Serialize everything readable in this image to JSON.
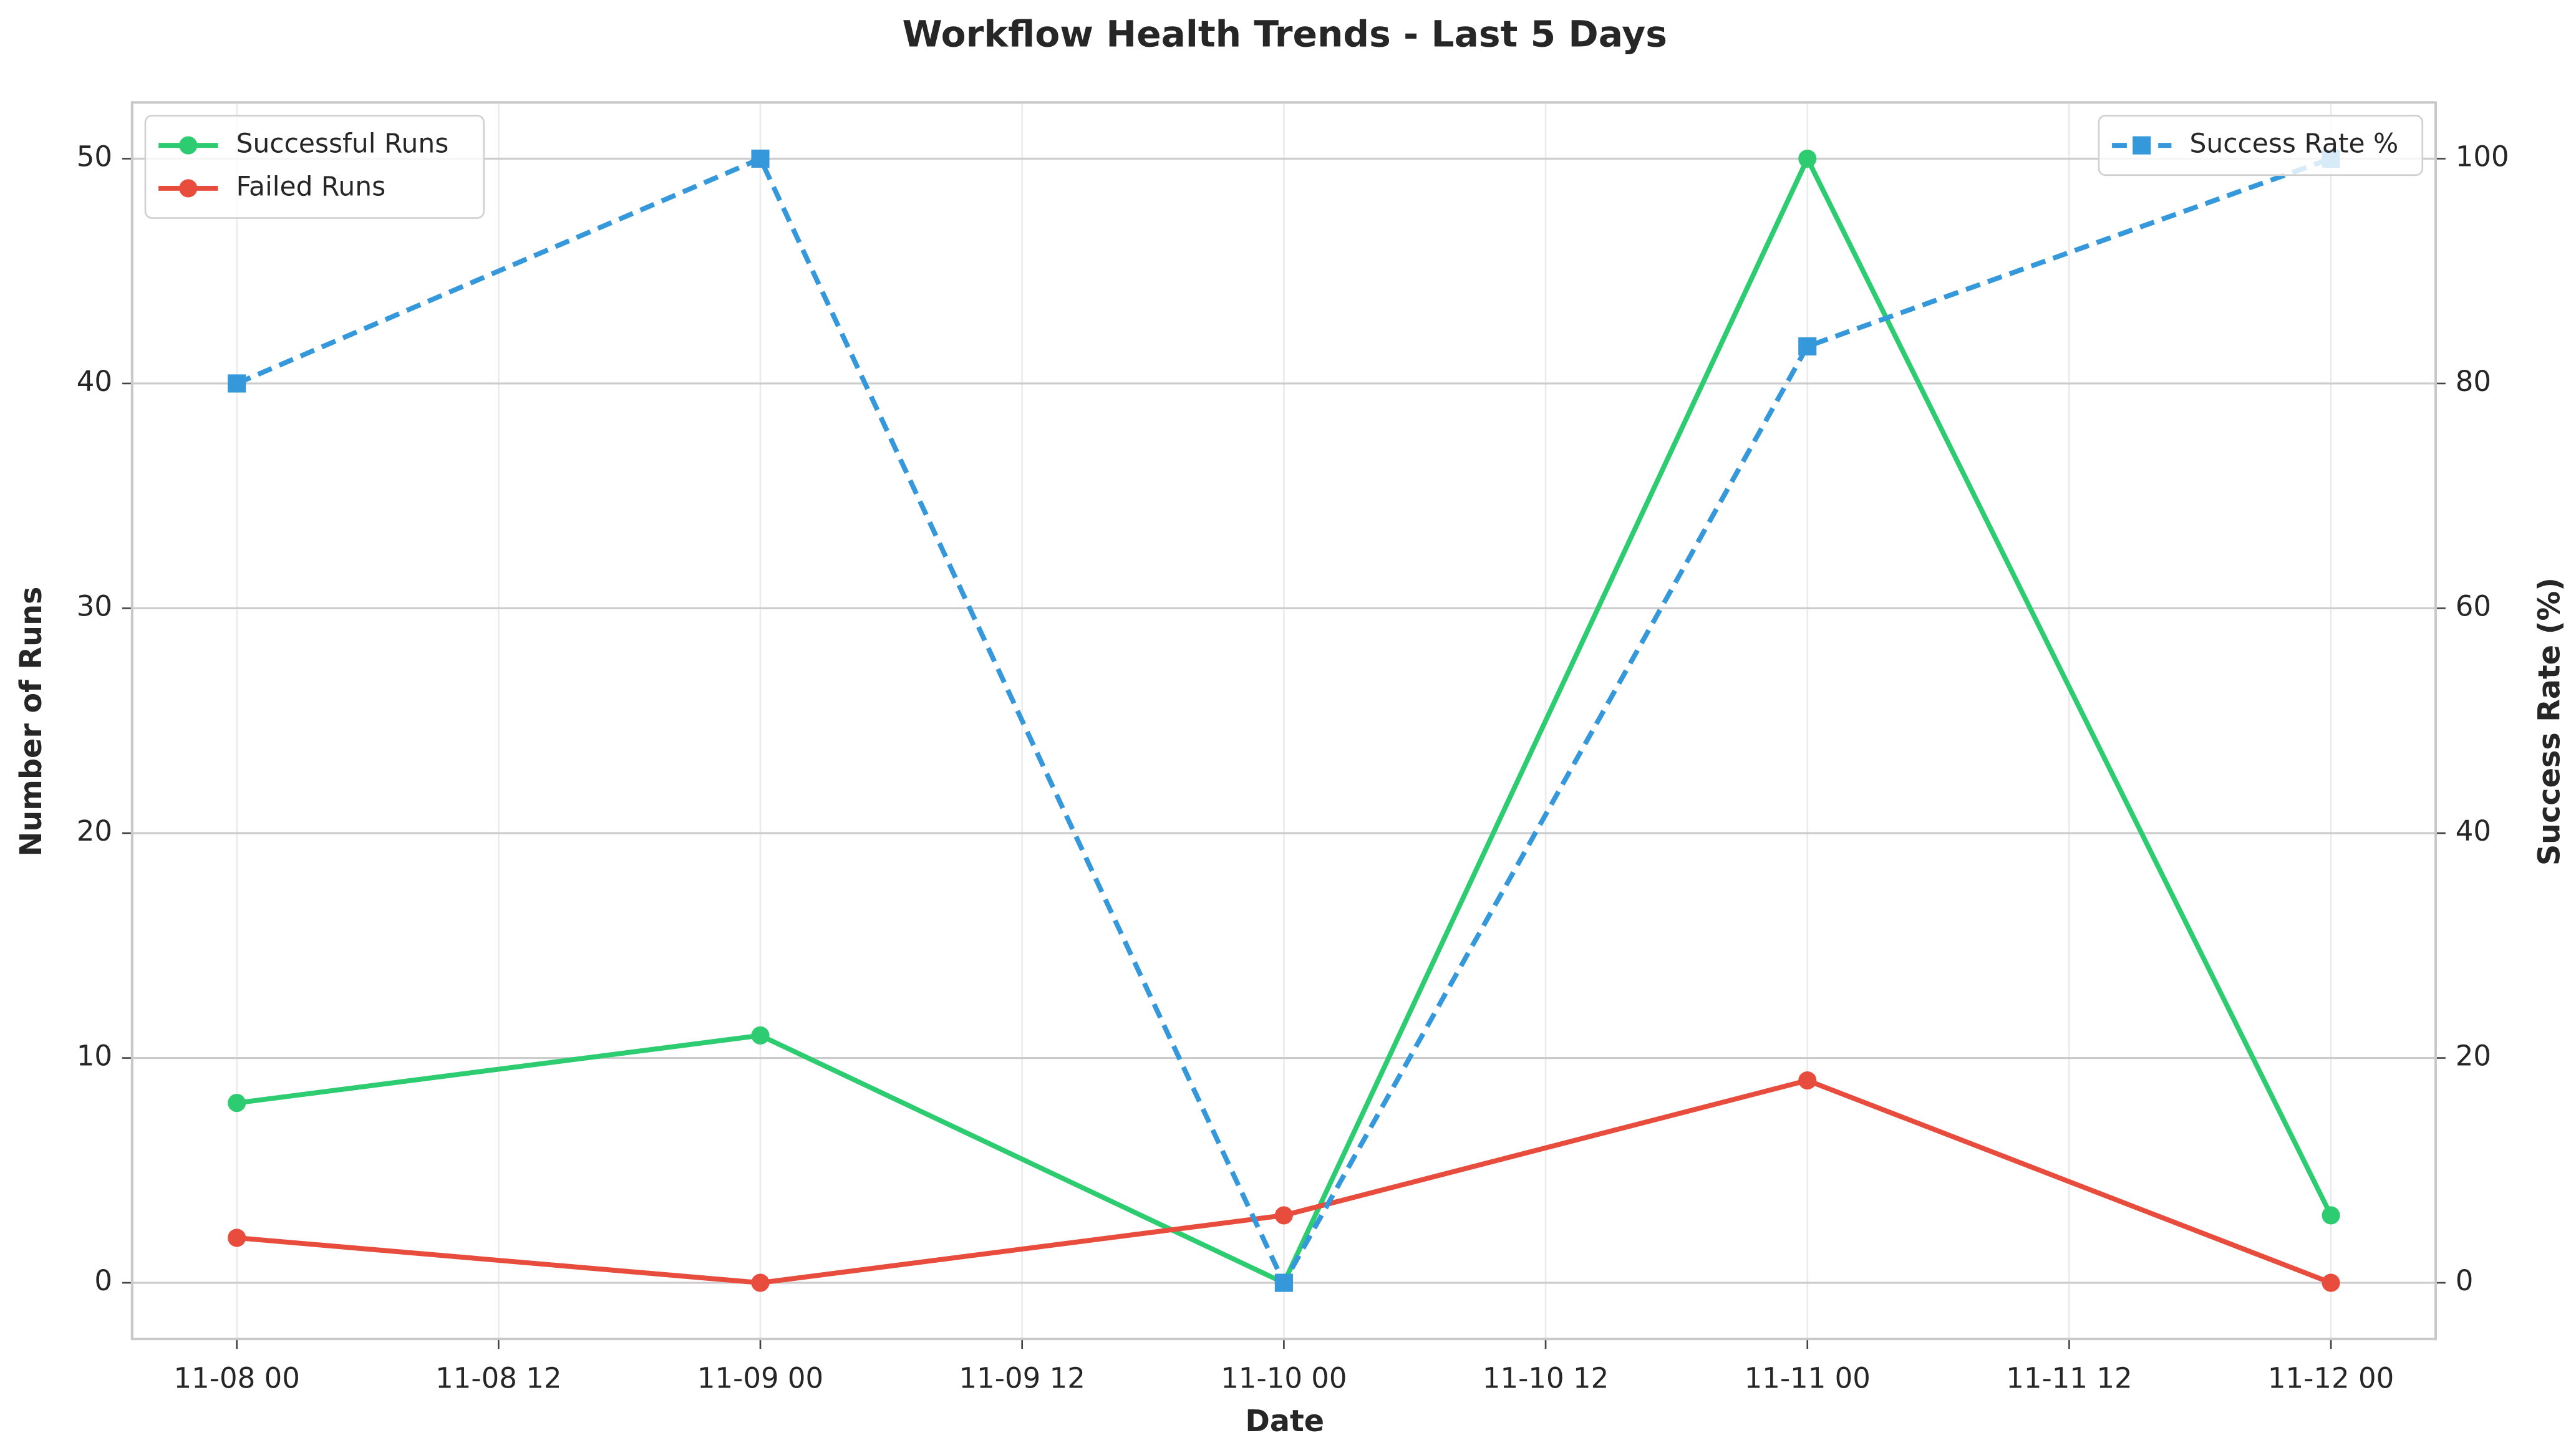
{
  "chart_data": {
    "type": "line",
    "title": "Workflow Health Trends - Last 5 Days",
    "xlabel": "Date",
    "ylabel": "Number of Runs",
    "y2label": "Success Rate (%)",
    "x": [
      0,
      24,
      48,
      72,
      96
    ],
    "xlim": [
      -4.8,
      100.8
    ],
    "xticks": [
      {
        "value": 0,
        "label": "11-08 00"
      },
      {
        "value": 12,
        "label": "11-08 12"
      },
      {
        "value": 24,
        "label": "11-09 00"
      },
      {
        "value": 36,
        "label": "11-09 12"
      },
      {
        "value": 48,
        "label": "11-10 00"
      },
      {
        "value": 60,
        "label": "11-10 12"
      },
      {
        "value": 72,
        "label": "11-11 00"
      },
      {
        "value": 84,
        "label": "11-11 12"
      },
      {
        "value": 96,
        "label": "11-12 00"
      }
    ],
    "ylim": [
      -2.5,
      52.5
    ],
    "yticks": [
      0,
      10,
      20,
      30,
      40,
      50
    ],
    "y2lim": [
      -5,
      105
    ],
    "y2ticks": [
      0,
      20,
      40,
      60,
      80,
      100
    ],
    "grid": true,
    "legend_loc": "upper left",
    "y2_legend_loc": "upper right",
    "series": [
      {
        "name": "Successful Runs",
        "color": "#2ecc71",
        "marker": "circle",
        "linestyle": "solid",
        "values": [
          8,
          11,
          0,
          50,
          3
        ]
      },
      {
        "name": "Failed Runs",
        "color": "#e74c3c",
        "marker": "circle",
        "linestyle": "solid",
        "values": [
          2,
          0,
          3,
          9,
          0
        ]
      },
      {
        "name": "Success Rate %",
        "color": "#3498db",
        "marker": "square",
        "linestyle": "dashed",
        "axis": "y2",
        "values": [
          80,
          100,
          0,
          83.3,
          100
        ]
      }
    ]
  }
}
